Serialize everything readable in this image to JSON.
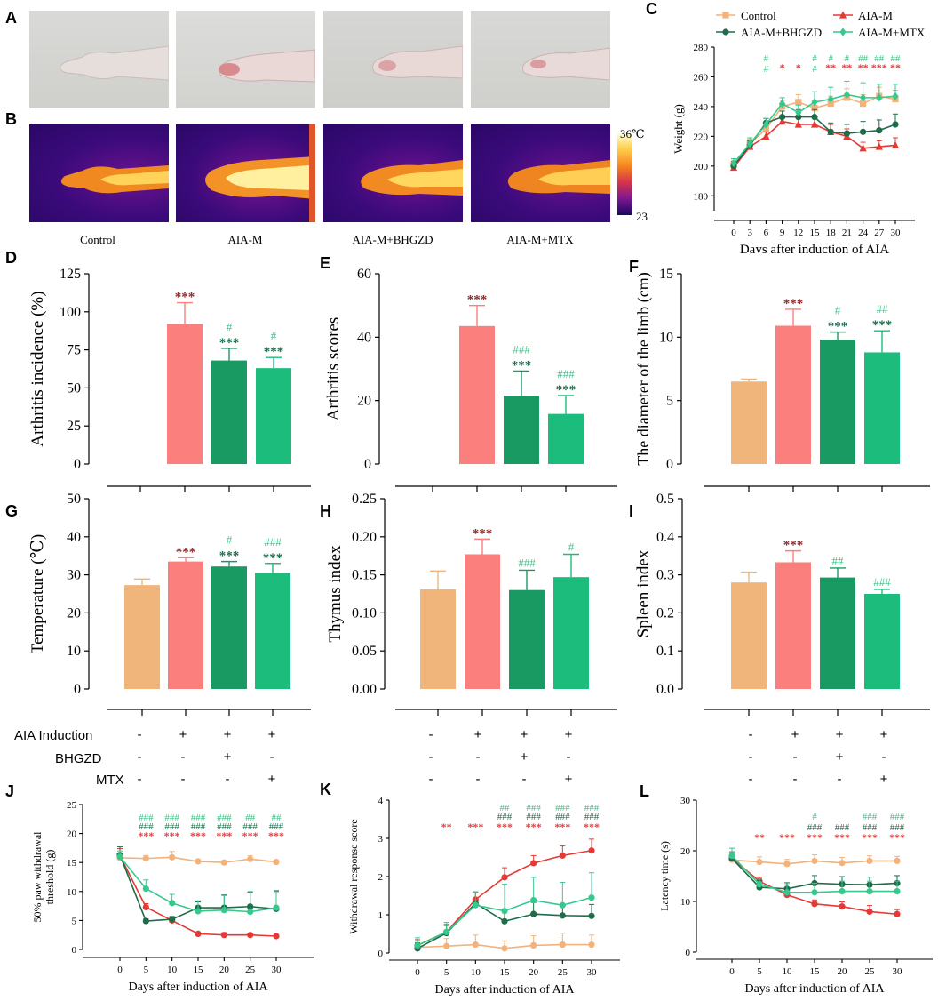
{
  "colors": {
    "control": "#f0b57b",
    "aiam": "#fb7f7c",
    "bhgzd": "#1a9a63",
    "mtx": "#1cbd7c",
    "line_control": "#f2b27a",
    "line_aiam": "#e53935",
    "line_bhgzd": "#1f6b4a",
    "line_mtx": "#35c98e",
    "star_red": "#ef3b3b",
    "star_dark": "#8c2b2b",
    "star_green": "#1f6b4a",
    "hash_green": "#3fbf85"
  },
  "panels": {
    "A": "A",
    "B": "B",
    "C": "C",
    "D": "D",
    "E": "E",
    "F": "F",
    "G": "G",
    "H": "H",
    "I": "I",
    "J": "J",
    "K": "K",
    "L": "L"
  },
  "images": {
    "captions": [
      "Control",
      "AIA-M",
      "AIA-M+BHGZD",
      "AIA-M+MTX"
    ],
    "thermal_max": "36",
    "thermal_unit": "℃",
    "thermal_min": "23"
  },
  "groups_table": {
    "rows": [
      {
        "label": "AIA  Induction",
        "values": [
          "-",
          "+",
          "+",
          "+"
        ]
      },
      {
        "label": "BHGZD",
        "values": [
          "-",
          "-",
          "+",
          "-"
        ]
      },
      {
        "label": "MTX",
        "values": [
          "-",
          "-",
          "-",
          "+"
        ]
      }
    ]
  },
  "chart_data": [
    {
      "id": "C",
      "type": "line",
      "title": "",
      "xlabel": "Days after induction of AIA",
      "ylabel": "Weight (g)",
      "ylim": [
        170,
        280
      ],
      "yticks": [
        180,
        200,
        220,
        240,
        260,
        280
      ],
      "x": [
        0,
        3,
        6,
        9,
        12,
        15,
        18,
        21,
        24,
        27,
        30
      ],
      "legend": [
        "Control",
        "AIA-M",
        "AIA-M+BHGZD",
        "AIA-M+MTX"
      ],
      "series": [
        {
          "name": "Control",
          "color": "#f2b27a",
          "marker": "square",
          "values": [
            201,
            215,
            225,
            240,
            243,
            239,
            242,
            246,
            242,
            247,
            245
          ],
          "err": [
            3,
            3,
            3,
            4,
            5,
            5,
            5,
            6,
            6,
            6,
            6
          ]
        },
        {
          "name": "AIA-M",
          "color": "#e53935",
          "marker": "triangle",
          "values": [
            199,
            213,
            220,
            230,
            228,
            228,
            223,
            220,
            212,
            213,
            214
          ],
          "err": [
            3,
            3,
            3,
            4,
            5,
            5,
            5,
            5,
            4,
            4,
            5
          ]
        },
        {
          "name": "AIA-M+BHGZD",
          "color": "#1f6b4a",
          "marker": "circle",
          "values": [
            200,
            214,
            229,
            233,
            233,
            233,
            223,
            222,
            223,
            224,
            228
          ],
          "err": [
            3,
            3,
            3,
            4,
            5,
            5,
            6,
            6,
            7,
            7,
            7
          ]
        },
        {
          "name": "AIA-M+MTX",
          "color": "#35c98e",
          "marker": "diamond",
          "values": [
            202,
            215,
            228,
            242,
            236,
            243,
            245,
            248,
            246,
            246,
            247
          ],
          "err": [
            3,
            4,
            4,
            4,
            5,
            7,
            8,
            9,
            10,
            9,
            8
          ]
        }
      ],
      "annotations": {
        "hash_x": [
          6,
          15,
          18,
          21,
          24,
          27,
          30
        ],
        "hash": [
          "#",
          "#",
          "#",
          "#",
          "##",
          "##",
          "##"
        ],
        "star_x": [
          9,
          12,
          18,
          21,
          24,
          27,
          30
        ],
        "star": [
          "*",
          "*",
          "**",
          "**",
          "**",
          "***",
          "**"
        ],
        "hash_x2": [
          6,
          15
        ],
        "hash2": [
          "#",
          "#"
        ]
      }
    },
    {
      "id": "D",
      "type": "bar",
      "ylabel": "Arthritis incidence (%)",
      "ylim": [
        0,
        125
      ],
      "yticks": [
        0,
        25,
        50,
        75,
        100,
        125
      ],
      "categories": [
        "Control",
        "AIA-M",
        "AIA-M+BHGZD",
        "AIA-M+MTX"
      ],
      "values": [
        0,
        92,
        68,
        63
      ],
      "err": [
        0,
        14,
        8,
        7
      ],
      "hash": [
        "",
        "",
        "#",
        "#"
      ],
      "star": [
        "",
        "***",
        "***",
        "***"
      ]
    },
    {
      "id": "E",
      "type": "bar",
      "ylabel": "Arthritis scores",
      "ylim": [
        0,
        60
      ],
      "yticks": [
        0,
        20,
        40,
        60
      ],
      "categories": [
        "Control",
        "AIA-M",
        "AIA-M+BHGZD",
        "AIA-M+MTX"
      ],
      "values": [
        0,
        43.5,
        21.5,
        15.8
      ],
      "err": [
        0,
        6.5,
        7.8,
        5.8
      ],
      "hash": [
        "",
        "",
        "###",
        "###"
      ],
      "star": [
        "",
        "***",
        "***",
        "***"
      ]
    },
    {
      "id": "F",
      "type": "bar",
      "ylabel": "The diameter of the limb (cm)",
      "ylim": [
        0,
        15
      ],
      "yticks": [
        0,
        5,
        10,
        15
      ],
      "categories": [
        "Control",
        "AIA-M",
        "AIA-M+BHGZD",
        "AIA-M+MTX"
      ],
      "values": [
        6.5,
        10.9,
        9.8,
        8.8
      ],
      "err": [
        0.2,
        1.3,
        0.6,
        1.7
      ],
      "hash": [
        "",
        "",
        "#",
        "##"
      ],
      "star": [
        "",
        "***",
        "***",
        "***"
      ]
    },
    {
      "id": "G",
      "type": "bar",
      "ylabel": "Temperature (℃)",
      "ylim": [
        0,
        50
      ],
      "yticks": [
        0,
        10,
        20,
        30,
        40,
        50
      ],
      "categories": [
        "Control",
        "AIA-M",
        "AIA-M+BHGZD",
        "AIA-M+MTX"
      ],
      "values": [
        27.3,
        33.5,
        32.2,
        30.5
      ],
      "err": [
        1.6,
        1.0,
        1.3,
        2.5
      ],
      "hash": [
        "",
        "",
        "#",
        "###"
      ],
      "star": [
        "",
        "***",
        "***",
        "***"
      ]
    },
    {
      "id": "H",
      "type": "bar",
      "ylabel": "Thymus index",
      "ylim": [
        0,
        0.25
      ],
      "yticks": [
        "0.00",
        "0.05",
        "0.10",
        "0.15",
        "0.20",
        "0.25"
      ],
      "categories": [
        "Control",
        "AIA-M",
        "AIA-M+BHGZD",
        "AIA-M+MTX"
      ],
      "values": [
        0.131,
        0.177,
        0.13,
        0.147
      ],
      "err": [
        0.024,
        0.02,
        0.026,
        0.03
      ],
      "hash": [
        "",
        "",
        "###",
        "#"
      ],
      "star": [
        "",
        "***",
        "",
        ""
      ]
    },
    {
      "id": "I",
      "type": "bar",
      "ylabel": "Spleen index",
      "ylim": [
        0,
        0.5
      ],
      "yticks": [
        "0.0",
        "0.1",
        "0.2",
        "0.3",
        "0.4",
        "0.5"
      ],
      "categories": [
        "Control",
        "AIA-M",
        "AIA-M+BHGZD",
        "AIA-M+MTX"
      ],
      "values": [
        0.28,
        0.333,
        0.293,
        0.25
      ],
      "err": [
        0.027,
        0.03,
        0.025,
        0.012
      ],
      "hash": [
        "",
        "",
        "##",
        "###"
      ],
      "star": [
        "",
        "***",
        "",
        ""
      ]
    },
    {
      "id": "J",
      "type": "line",
      "xlabel": "Days after induction of AIA",
      "ylabel": "50% paw withdrawal threshold (g)",
      "ylim": [
        0,
        25
      ],
      "yticks": [
        0,
        5,
        10,
        15,
        20,
        25
      ],
      "x": [
        0,
        5,
        10,
        15,
        20,
        25,
        30
      ],
      "series": [
        {
          "name": "Control",
          "color": "#f2b27a",
          "values": [
            15.8,
            15.7,
            15.9,
            15.2,
            15.0,
            15.6,
            15.1
          ],
          "err": [
            0.6,
            0.5,
            1.0,
            0.3,
            0.3,
            0.6,
            0.3
          ]
        },
        {
          "name": "AIA-M",
          "color": "#e53935",
          "values": [
            16.2,
            7.3,
            5.0,
            2.7,
            2.5,
            2.5,
            2.3
          ],
          "err": [
            1.2,
            0.6,
            0.5,
            0.3,
            0.4,
            0.3,
            0.2
          ]
        },
        {
          "name": "AIA-M+BHGZD",
          "color": "#1f6b4a",
          "values": [
            16.3,
            4.9,
            5.2,
            7.2,
            7.2,
            7.4,
            7.0
          ],
          "err": [
            1.4,
            0.4,
            0.5,
            1.0,
            2.2,
            2.5,
            3.0
          ]
        },
        {
          "name": "AIA-M+MTX",
          "color": "#35c98e",
          "values": [
            16.0,
            10.5,
            8.0,
            6.6,
            6.8,
            6.5,
            7.2
          ],
          "err": [
            1.0,
            1.5,
            1.5,
            1.8,
            2.5,
            3.5,
            3.0
          ]
        }
      ],
      "annotations": {
        "x": [
          5,
          10,
          15,
          20,
          25,
          30
        ],
        "row1": [
          "###",
          "###",
          "###",
          "###",
          "##",
          "##"
        ],
        "row2": [
          "###",
          "###",
          "###",
          "###",
          "###",
          "###"
        ],
        "row3": [
          "***",
          "***",
          "***",
          "***",
          "***",
          "***"
        ]
      }
    },
    {
      "id": "K",
      "type": "line",
      "xlabel": "Days after induction of AIA",
      "ylabel": "Withdrawal response score",
      "ylim": [
        0,
        4
      ],
      "yticks": [
        0,
        1,
        2,
        3,
        4
      ],
      "x": [
        0,
        5,
        10,
        15,
        20,
        25,
        30
      ],
      "series": [
        {
          "name": "Control",
          "color": "#f2b27a",
          "values": [
            0.15,
            0.18,
            0.22,
            0.12,
            0.2,
            0.22,
            0.22
          ],
          "err": [
            0.2,
            0.2,
            0.25,
            0.2,
            0.25,
            0.3,
            0.25
          ]
        },
        {
          "name": "AIA-M",
          "color": "#e53935",
          "values": [
            0.2,
            0.55,
            1.4,
            1.98,
            2.35,
            2.55,
            2.68
          ],
          "err": [
            0.15,
            0.2,
            0.2,
            0.25,
            0.2,
            0.25,
            0.3
          ]
        },
        {
          "name": "AIA-M+BHGZD",
          "color": "#1f6b4a",
          "values": [
            0.12,
            0.52,
            1.3,
            0.83,
            1.02,
            0.98,
            0.97
          ],
          "err": [
            0.15,
            0.2,
            0.3,
            0.3,
            0.3,
            0.3,
            0.3
          ]
        },
        {
          "name": "AIA-M+MTX",
          "color": "#35c98e",
          "values": [
            0.2,
            0.55,
            1.25,
            1.1,
            1.38,
            1.25,
            1.45
          ],
          "err": [
            0.2,
            0.25,
            0.35,
            0.7,
            0.6,
            0.6,
            0.65
          ]
        }
      ],
      "annotations": {
        "x": [
          5,
          10,
          15,
          20,
          25,
          30
        ],
        "row1": [
          "",
          "",
          "##",
          "###",
          "###",
          "###"
        ],
        "row2": [
          "",
          "",
          "###",
          "###",
          "###",
          "###"
        ],
        "row3": [
          "**",
          "***",
          "***",
          "***",
          "***",
          "***"
        ]
      }
    },
    {
      "id": "L",
      "type": "line",
      "xlabel": "Days after induction of AIA",
      "ylabel": "Latency time (s)",
      "ylim": [
        0,
        30
      ],
      "yticks": [
        0,
        10,
        20,
        30
      ],
      "x": [
        0,
        5,
        10,
        15,
        20,
        25,
        30
      ],
      "series": [
        {
          "name": "Control",
          "color": "#f2b27a",
          "values": [
            18.2,
            17.8,
            17.4,
            18.0,
            17.6,
            18.0,
            18.0
          ],
          "err": [
            1.0,
            1.0,
            0.9,
            1.2,
            1.1,
            1.0,
            0.9
          ]
        },
        {
          "name": "AIA-M",
          "color": "#e53935",
          "values": [
            18.5,
            14.0,
            11.3,
            9.5,
            9.0,
            8.0,
            7.5
          ],
          "err": [
            0.8,
            0.8,
            0.8,
            0.8,
            0.9,
            1.2,
            0.9
          ]
        },
        {
          "name": "AIA-M+BHGZD",
          "color": "#1f6b4a",
          "values": [
            18.5,
            12.8,
            12.5,
            13.6,
            13.4,
            13.3,
            13.6
          ],
          "err": [
            1.3,
            1.3,
            1.2,
            1.5,
            1.5,
            1.5,
            1.5
          ]
        },
        {
          "name": "AIA-M+MTX",
          "color": "#35c98e",
          "values": [
            19.0,
            13.4,
            11.8,
            11.8,
            12.0,
            12.0,
            12.0
          ],
          "err": [
            1.5,
            1.2,
            1.5,
            1.8,
            2.0,
            2.0,
            2.0
          ]
        }
      ],
      "annotations": {
        "x": [
          5,
          10,
          15,
          20,
          25,
          30
        ],
        "row1": [
          "",
          "",
          "#",
          "",
          "###",
          "###"
        ],
        "row2": [
          "",
          "",
          "###",
          "###",
          "###",
          "###"
        ],
        "row3": [
          "**",
          "***",
          "***",
          "***",
          "***",
          "***"
        ]
      }
    }
  ]
}
